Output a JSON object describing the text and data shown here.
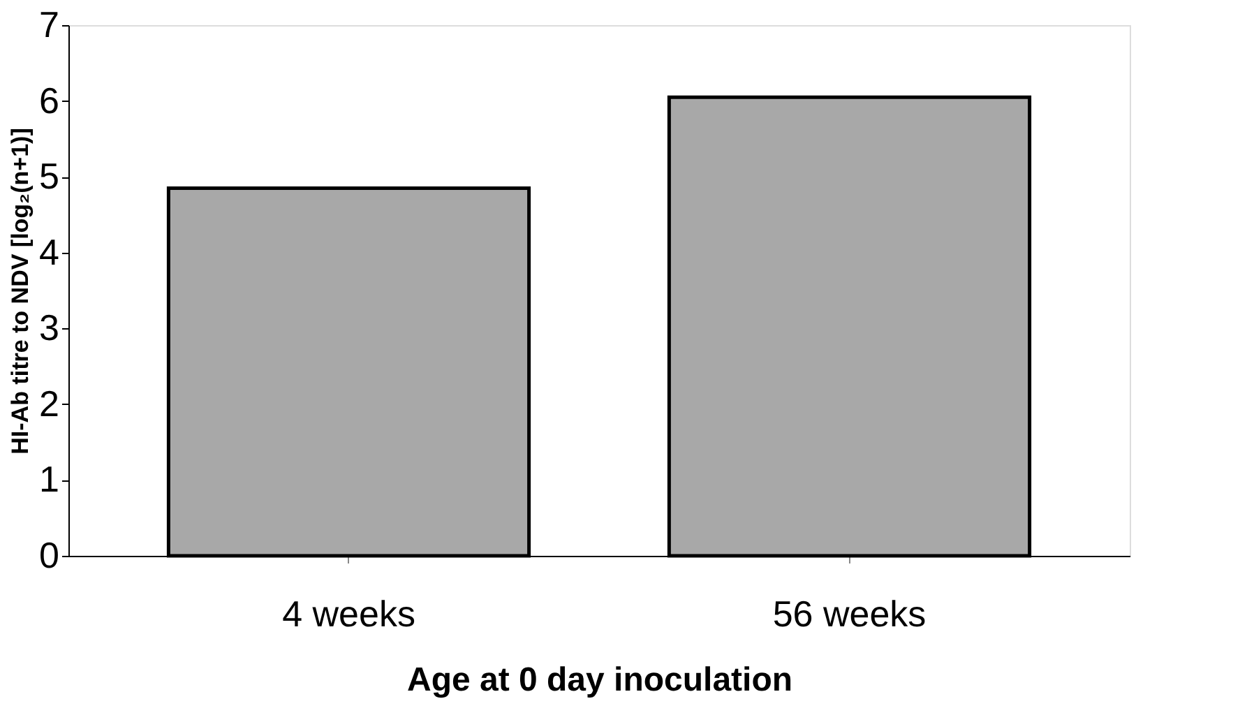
{
  "chart_data": {
    "type": "bar",
    "categories": [
      "4 weeks",
      "56 weeks"
    ],
    "values": [
      4.85,
      6.05
    ],
    "color": "#a8a8a8",
    "xlabel": "Age at 0 day inoculation",
    "ylabel": "HI-Ab titre to NDV [log₂(n+1)]",
    "ylim": [
      0,
      7
    ],
    "yticks": [
      0,
      1,
      2,
      3,
      4,
      5,
      6,
      7
    ],
    "grid": false
  }
}
